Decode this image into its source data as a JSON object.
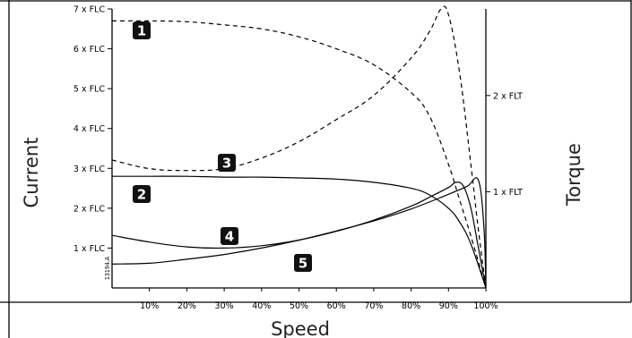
{
  "chart_data": {
    "type": "line",
    "xlabel": "Speed",
    "ylabel_left": "Current",
    "ylabel_right": "Torque",
    "x_ticks": [
      "10%",
      "20%",
      "30%",
      "40%",
      "50%",
      "60%",
      "70%",
      "80%",
      "90%",
      "100%"
    ],
    "y_left_ticks": [
      "1 x FLC",
      "2 x FLC",
      "3 x FLC",
      "4 x FLC",
      "5 x FLC",
      "6 x FLC",
      "7 x FLC"
    ],
    "y_right_ticks": [
      "1 x FLT",
      "2 x FLT"
    ],
    "xlim": [
      0,
      100
    ],
    "ylim_left": [
      0,
      7
    ],
    "ylim_right": [
      0,
      2.9
    ],
    "grid": false,
    "reference_code": "13194.A",
    "series": [
      {
        "marker": "1",
        "axis": "left",
        "style": "dashed",
        "points": [
          [
            0,
            6.7
          ],
          [
            10,
            6.7
          ],
          [
            20,
            6.68
          ],
          [
            30,
            6.6
          ],
          [
            40,
            6.5
          ],
          [
            50,
            6.3
          ],
          [
            60,
            6.0
          ],
          [
            70,
            5.6
          ],
          [
            80,
            4.9
          ],
          [
            85,
            4.3
          ],
          [
            90,
            3.1
          ],
          [
            93,
            2.2
          ],
          [
            96,
            1.3
          ],
          [
            100,
            0
          ]
        ]
      },
      {
        "marker": "2",
        "axis": "left",
        "style": "solid",
        "points": [
          [
            0,
            2.8
          ],
          [
            10,
            2.8
          ],
          [
            20,
            2.8
          ],
          [
            30,
            2.78
          ],
          [
            40,
            2.78
          ],
          [
            50,
            2.76
          ],
          [
            60,
            2.73
          ],
          [
            70,
            2.65
          ],
          [
            80,
            2.5
          ],
          [
            85,
            2.33
          ],
          [
            90,
            2.0
          ],
          [
            93,
            1.65
          ],
          [
            96,
            1.1
          ],
          [
            100,
            0
          ]
        ]
      },
      {
        "marker": "3",
        "axis": "right",
        "style": "dashed",
        "points": [
          [
            0,
            1.33
          ],
          [
            10,
            1.24
          ],
          [
            20,
            1.22
          ],
          [
            30,
            1.24
          ],
          [
            40,
            1.35
          ],
          [
            50,
            1.52
          ],
          [
            60,
            1.75
          ],
          [
            70,
            2.0
          ],
          [
            80,
            2.39
          ],
          [
            85,
            2.67
          ],
          [
            88,
            2.9
          ],
          [
            90,
            2.84
          ],
          [
            93,
            2.23
          ],
          [
            96,
            1.28
          ],
          [
            98,
            0.6
          ],
          [
            100,
            0
          ]
        ]
      },
      {
        "marker": "4",
        "axis": "left",
        "style": "solid",
        "points": [
          [
            0,
            1.32
          ],
          [
            10,
            1.15
          ],
          [
            20,
            1.03
          ],
          [
            30,
            1.0
          ],
          [
            40,
            1.06
          ],
          [
            50,
            1.2
          ],
          [
            60,
            1.42
          ],
          [
            70,
            1.7
          ],
          [
            80,
            2.05
          ],
          [
            85,
            2.28
          ],
          [
            90,
            2.52
          ],
          [
            92,
            2.65
          ],
          [
            94,
            2.55
          ],
          [
            96,
            2.0
          ],
          [
            98,
            1.0
          ],
          [
            100,
            0
          ]
        ]
      },
      {
        "marker": "5",
        "axis": "left",
        "style": "solid",
        "points": [
          [
            0,
            0.6
          ],
          [
            10,
            0.62
          ],
          [
            20,
            0.72
          ],
          [
            30,
            0.84
          ],
          [
            40,
            1.0
          ],
          [
            50,
            1.2
          ],
          [
            60,
            1.43
          ],
          [
            70,
            1.68
          ],
          [
            80,
            1.98
          ],
          [
            90,
            2.35
          ],
          [
            95,
            2.55
          ],
          [
            98,
            2.7
          ],
          [
            99.5,
            1.5
          ],
          [
            100,
            0
          ]
        ]
      }
    ]
  }
}
